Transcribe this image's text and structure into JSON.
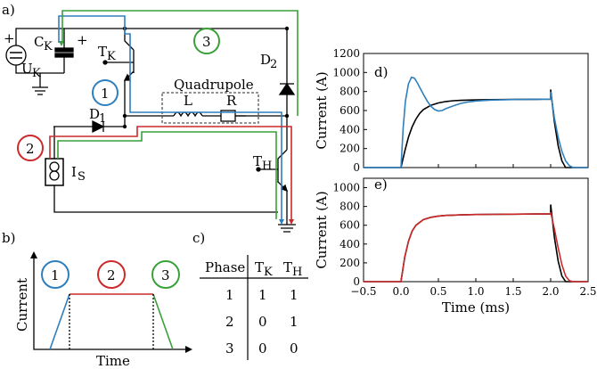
{
  "panels": {
    "a": "a)",
    "b": "b)",
    "c": "c)",
    "d": "d)",
    "e": "e)"
  },
  "circuit": {
    "capacitor_label": "C",
    "capacitor_sub": "K",
    "voltage_label": "U",
    "voltage_sub": "K",
    "switch_k_label": "T",
    "switch_k_sub": "K",
    "switch_h_label": "T",
    "switch_h_sub": "H",
    "diode1_label": "D",
    "diode1_sub": "1",
    "diode2_label": "D",
    "diode2_sub": "2",
    "quadrupole_label": "Quadrupole",
    "inductor_label": "L",
    "resistor_label": "R",
    "source_label": "I",
    "source_sub": "S",
    "plus": "+",
    "phase_markers": [
      "1",
      "2",
      "3"
    ],
    "phase_colors": [
      "#2e7fbd",
      "#cc2a2a",
      "#3aa03a"
    ]
  },
  "timing": {
    "ylabel": "Current",
    "xlabel": "Time",
    "phases": [
      "1",
      "2",
      "3"
    ]
  },
  "table": {
    "headers": [
      "Phase",
      "T",
      "T"
    ],
    "header_subs": [
      "",
      "K",
      "H"
    ],
    "rows": [
      [
        "1",
        "1",
        "1"
      ],
      [
        "2",
        "0",
        "1"
      ],
      [
        "3",
        "0",
        "0"
      ]
    ]
  },
  "chart_data": [
    {
      "type": "line",
      "panel": "d)",
      "xlabel": "",
      "ylabel": "Current (A)",
      "xlim": [
        -0.5,
        2.5
      ],
      "ylim": [
        0,
        1200
      ],
      "xticks": [
        -0.5,
        0.0,
        0.5,
        1.0,
        1.5,
        2.0,
        2.5
      ],
      "yticks": [
        0,
        200,
        400,
        600,
        800,
        1000,
        1200
      ],
      "series": [
        {
          "color": "#000000",
          "x": [
            -0.5,
            0.0,
            0.05,
            0.1,
            0.15,
            0.2,
            0.25,
            0.3,
            0.4,
            0.5,
            0.6,
            0.7,
            0.8,
            0.9,
            1.0,
            1.2,
            1.5,
            1.8,
            2.0,
            2.0,
            2.05,
            2.1,
            2.15,
            2.2,
            2.5
          ],
          "y": [
            0,
            0,
            170,
            320,
            430,
            510,
            570,
            610,
            655,
            680,
            695,
            703,
            707,
            710,
            712,
            714,
            716,
            718,
            720,
            820,
            480,
            230,
            70,
            0,
            0
          ]
        },
        {
          "color": "#2e7fbd",
          "x": [
            -0.5,
            0.0,
            0.03,
            0.06,
            0.1,
            0.14,
            0.18,
            0.22,
            0.26,
            0.3,
            0.35,
            0.4,
            0.45,
            0.5,
            0.55,
            0.6,
            0.7,
            0.8,
            0.9,
            1.0,
            1.2,
            1.5,
            1.8,
            2.0,
            2.0,
            2.05,
            2.1,
            2.15,
            2.2,
            2.25,
            2.3,
            2.5
          ],
          "y": [
            0,
            0,
            420,
            700,
            880,
            950,
            940,
            890,
            830,
            770,
            700,
            645,
            610,
            595,
            600,
            620,
            650,
            675,
            690,
            700,
            710,
            715,
            718,
            720,
            800,
            520,
            320,
            170,
            70,
            20,
            0,
            0
          ]
        }
      ]
    },
    {
      "type": "line",
      "panel": "e)",
      "xlabel": "Time (ms)",
      "ylabel": "Current (A)",
      "xlim": [
        -0.5,
        2.5
      ],
      "ylim": [
        0,
        1100
      ],
      "xticks": [
        -0.5,
        0.0,
        0.5,
        1.0,
        1.5,
        2.0,
        2.5
      ],
      "yticks": [
        0,
        200,
        400,
        600,
        800,
        1000
      ],
      "series": [
        {
          "color": "#000000",
          "x": [
            -0.5,
            0.0,
            0.05,
            0.1,
            0.15,
            0.2,
            0.3,
            0.4,
            0.5,
            0.6,
            0.8,
            1.0,
            1.2,
            1.5,
            1.8,
            2.0,
            2.0,
            2.05,
            2.1,
            2.15,
            2.2,
            2.5
          ],
          "y": [
            0,
            0,
            260,
            430,
            540,
            600,
            660,
            685,
            698,
            705,
            710,
            714,
            716,
            718,
            720,
            722,
            820,
            470,
            220,
            60,
            0,
            0
          ]
        },
        {
          "color": "#cc2a2a",
          "x": [
            -0.5,
            0.0,
            0.05,
            0.1,
            0.15,
            0.2,
            0.3,
            0.4,
            0.5,
            0.6,
            0.8,
            1.0,
            1.2,
            1.5,
            1.8,
            2.0,
            2.0,
            2.05,
            2.1,
            2.15,
            2.2,
            2.25,
            2.3,
            2.5
          ],
          "y": [
            0,
            0,
            260,
            430,
            540,
            600,
            660,
            685,
            698,
            705,
            710,
            714,
            716,
            718,
            720,
            722,
            740,
            560,
            360,
            180,
            60,
            10,
            0,
            0
          ]
        }
      ]
    }
  ]
}
